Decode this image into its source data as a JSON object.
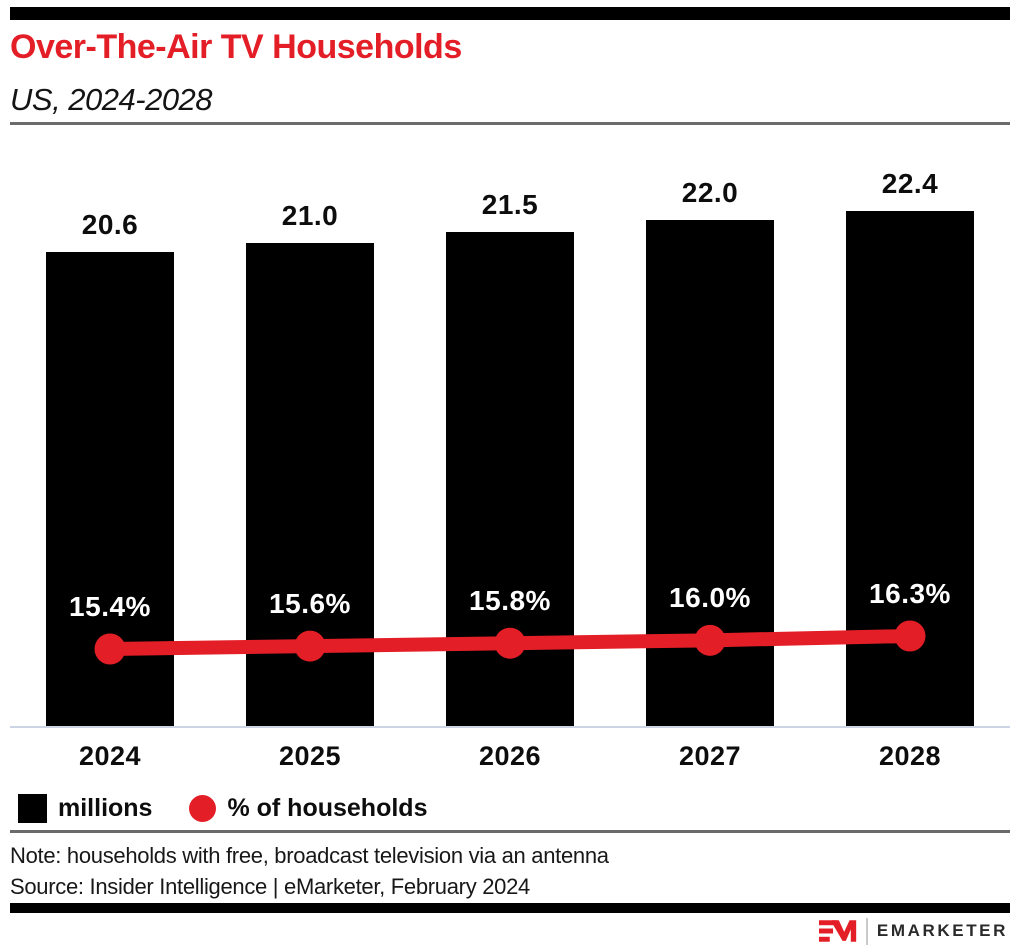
{
  "header": {
    "title": "Over-The-Air TV Households",
    "subtitle": "US, 2024-2028"
  },
  "chart_data": {
    "type": "bar",
    "title": "Over-The-Air TV Households",
    "subtitle": "US, 2024-2028",
    "categories": [
      "2024",
      "2025",
      "2026",
      "2027",
      "2028"
    ],
    "series": [
      {
        "name": "millions",
        "chart_type": "bar",
        "values": [
          20.6,
          21.0,
          21.5,
          22.0,
          22.4
        ],
        "labels": [
          "20.6",
          "21.0",
          "21.5",
          "22.0",
          "22.4"
        ],
        "color": "#000000"
      },
      {
        "name": "% of households",
        "chart_type": "line",
        "values": [
          15.4,
          15.6,
          15.8,
          16.0,
          16.3
        ],
        "labels": [
          "15.4%",
          "15.6%",
          "15.8%",
          "16.0%",
          "16.3%"
        ],
        "color": "#e41e26"
      }
    ],
    "xlabel": "",
    "ylabel": "",
    "grid": false,
    "legend_position": "bottom",
    "bar_axis_range": [
      0,
      22.4
    ],
    "line_axis_range": [
      15.4,
      16.3
    ]
  },
  "legend": {
    "items": [
      {
        "label": "millions",
        "swatch": "square",
        "color": "#000000"
      },
      {
        "label": "% of households",
        "swatch": "circle",
        "color": "#e41e26"
      }
    ]
  },
  "footer": {
    "note": "Note: households with free, broadcast television via an antenna",
    "source": "Source: Insider Intelligence | eMarketer, February 2024",
    "logo_text": "EMARKETER"
  },
  "colors": {
    "accent_red": "#e41e26",
    "bar_black": "#000000",
    "baseline": "#cdd5e4",
    "divider_gray": "#6b6b6b",
    "text": "#0d0d0d"
  }
}
